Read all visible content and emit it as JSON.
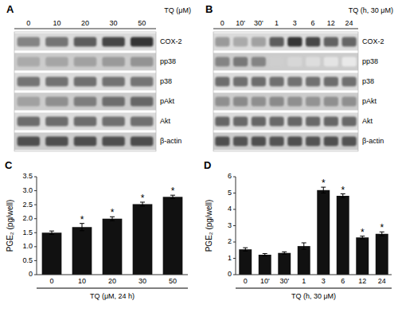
{
  "chart_data": [
    {
      "type": "blot",
      "title": "A",
      "x_label": "TQ (μM)",
      "categories": [
        "0",
        "10",
        "20",
        "30",
        "50"
      ],
      "rows": [
        "COX-2",
        "pp38",
        "p38",
        "pAkt",
        "Akt",
        "β-actin"
      ],
      "values": [
        [
          0.55,
          0.62,
          0.72,
          0.82,
          0.9
        ],
        [
          0.38,
          0.4,
          0.42,
          0.45,
          0.48
        ],
        [
          0.62,
          0.63,
          0.64,
          0.63,
          0.62
        ],
        [
          0.42,
          0.5,
          0.58,
          0.65,
          0.68
        ],
        [
          0.65,
          0.65,
          0.65,
          0.64,
          0.64
        ],
        [
          0.78,
          0.78,
          0.79,
          0.78,
          0.79
        ]
      ]
    },
    {
      "type": "blot",
      "title": "B",
      "x_label": "TQ (h, 30 μM)",
      "categories": [
        "0",
        "10'",
        "30'",
        "1",
        "3",
        "6",
        "12",
        "24"
      ],
      "rows": [
        "COX-2",
        "pp38",
        "p38",
        "pAkt",
        "Akt",
        "β-actin"
      ],
      "values": [
        [
          0.45,
          0.38,
          0.42,
          0.72,
          0.9,
          0.82,
          0.7,
          0.68
        ],
        [
          0.55,
          0.6,
          0.55,
          0.22,
          0.18,
          0.15,
          0.12,
          0.1
        ],
        [
          0.65,
          0.64,
          0.65,
          0.64,
          0.63,
          0.64,
          0.65,
          0.64
        ],
        [
          0.5,
          0.52,
          0.5,
          0.52,
          0.5,
          0.48,
          0.5,
          0.5
        ],
        [
          0.68,
          0.67,
          0.68,
          0.67,
          0.68,
          0.67,
          0.68,
          0.67
        ],
        [
          0.78,
          0.77,
          0.78,
          0.77,
          0.78,
          0.77,
          0.78,
          0.77
        ]
      ]
    },
    {
      "type": "bar",
      "title": "C",
      "categories": [
        "0",
        "10",
        "20",
        "30",
        "50"
      ],
      "values": [
        1.5,
        1.7,
        2.0,
        2.52,
        2.78
      ],
      "errors": [
        0.06,
        0.13,
        0.07,
        0.07,
        0.06
      ],
      "annotations": [
        {
          "category": "10",
          "text": "*"
        },
        {
          "category": "20",
          "text": "*"
        },
        {
          "category": "30",
          "text": "*"
        },
        {
          "category": "50",
          "text": "*"
        }
      ],
      "y_label": "PGE₂ (pg/well)",
      "x_label": "TQ (μM, 24 h)",
      "ylim": [
        0,
        3.5
      ],
      "yticks": [
        0,
        0.5,
        {
          "value": 1,
          "label": "1.0"
        },
        1.5,
        {
          "value": 2,
          "label": "2.0"
        },
        2.5,
        {
          "value": 3,
          "label": "3.0"
        },
        3.5
      ],
      "color": "#111111"
    },
    {
      "type": "bar",
      "title": "D",
      "categories": [
        "0",
        "10'",
        "30'",
        "1",
        "3",
        "6",
        "12",
        "24"
      ],
      "values": [
        1.55,
        1.22,
        1.33,
        1.75,
        5.18,
        4.83,
        2.28,
        2.5
      ],
      "errors": [
        0.1,
        0.07,
        0.07,
        0.2,
        0.18,
        0.12,
        0.08,
        0.12
      ],
      "annotations": [
        {
          "category": "3",
          "text": "*"
        },
        {
          "category": "6",
          "text": "*"
        },
        {
          "category": "12",
          "text": "*"
        },
        {
          "category": "24",
          "text": "*"
        }
      ],
      "y_label": "PGE₂ (pg/well)",
      "x_label": "TQ (h, 30 μM)",
      "ylim": [
        0,
        6
      ],
      "yticks": [
        0,
        1,
        2,
        3,
        4,
        5,
        6
      ],
      "color": "#111111"
    }
  ]
}
